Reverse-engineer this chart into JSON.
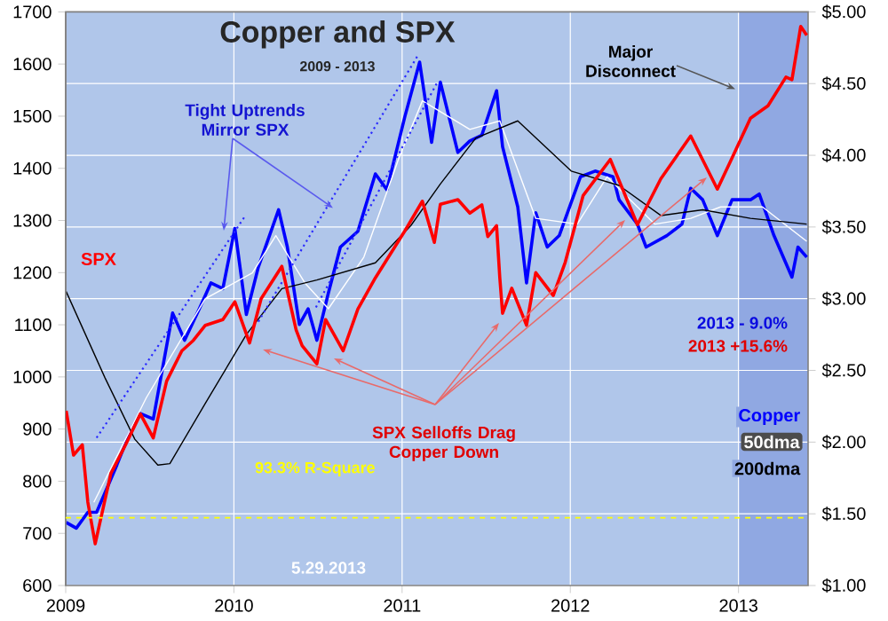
{
  "chart_data": {
    "type": "line",
    "title": "Copper and SPX",
    "subtitle": "2009 - 2013",
    "xlim": [
      "2009-01-01",
      "2013-06-01"
    ],
    "xticks": [
      "2009",
      "2010",
      "2011",
      "2012",
      "2013"
    ],
    "ylim": [
      600,
      1700
    ],
    "yticks": [
      600,
      700,
      800,
      900,
      1000,
      1100,
      1200,
      1300,
      1400,
      1500,
      1600,
      1700
    ],
    "y2lim": [
      1,
      5
    ],
    "y2ticks": [
      {
        "value": 1,
        "label": "$1.00"
      },
      {
        "value": 1.5,
        "label": "$1.50"
      },
      {
        "value": 2,
        "label": "$2.00"
      },
      {
        "value": 2.5,
        "label": "$2.50"
      },
      {
        "value": 3,
        "label": "$3.00"
      },
      {
        "value": 3.5,
        "label": "$3.50"
      },
      {
        "value": 4,
        "label": "$4.00"
      },
      {
        "value": 4.5,
        "label": "$4.50"
      },
      {
        "value": 5,
        "label": "$5.00"
      }
    ],
    "grid": true,
    "series": [
      {
        "name": "SPX",
        "color": "#ff0000",
        "axis": "y",
        "x": [
          "2009-01-02",
          "2009-01-18",
          "2009-02-06",
          "2009-02-18",
          "2009-03-06",
          "2009-04-09",
          "2009-05-11",
          "2009-06-12",
          "2009-07-10",
          "2009-08-08",
          "2009-09-10",
          "2009-10-05",
          "2009-10-31",
          "2009-12-08",
          "2010-01-03",
          "2010-02-04",
          "2010-03-01",
          "2010-04-15",
          "2010-05-16",
          "2010-05-29",
          "2010-06-30",
          "2010-07-19",
          "2010-08-26",
          "2010-09-27",
          "2010-11-04",
          "2011-01-07",
          "2011-02-14",
          "2011-03-12",
          "2011-03-25",
          "2011-05-02",
          "2011-05-28",
          "2011-06-23",
          "2011-07-06",
          "2011-07-25",
          "2011-08-01",
          "2011-08-07",
          "2011-08-27",
          "2011-09-28",
          "2011-10-18",
          "2011-11-25",
          "2011-12-21",
          "2012-01-29",
          "2012-03-28",
          "2012-05-26",
          "2012-07-16",
          "2012-09-19",
          "2012-11-16",
          "2012-12-18",
          "2013-01-27",
          "2013-03-06",
          "2013-04-14",
          "2013-04-27",
          "2013-05-16",
          "2013-05-29"
        ],
        "values": [
          935,
          850,
          870,
          760,
          680,
          815,
          870,
          929,
          883,
          992,
          1050,
          1070,
          1099,
          1110,
          1144,
          1065,
          1150,
          1212,
          1090,
          1060,
          1025,
          1110,
          1050,
          1130,
          1190,
          1280,
          1337,
          1258,
          1331,
          1340,
          1314,
          1330,
          1269,
          1290,
          1190,
          1122,
          1170,
          1099,
          1200,
          1156,
          1220,
          1348,
          1417,
          1292,
          1380,
          1462,
          1360,
          1420,
          1496,
          1520,
          1575,
          1570,
          1672,
          1655
        ]
      },
      {
        "name": "Copper",
        "color": "#0000ff",
        "axis": "y2",
        "x": [
          "2009-01-02",
          "2009-01-24",
          "2009-02-18",
          "2009-03-09",
          "2009-04-22",
          "2009-05-18",
          "2009-06-12",
          "2009-07-10",
          "2009-08-21",
          "2009-09-16",
          "2009-10-18",
          "2009-11-12",
          "2009-12-08",
          "2010-01-03",
          "2010-01-28",
          "2010-02-23",
          "2010-04-08",
          "2010-04-27",
          "2010-05-23",
          "2010-06-11",
          "2010-06-30",
          "2010-07-25",
          "2010-08-20",
          "2010-09-27",
          "2010-11-04",
          "2010-11-29",
          "2011-01-07",
          "2011-02-08",
          "2011-03-06",
          "2011-03-25",
          "2011-05-02",
          "2011-05-28",
          "2011-06-23",
          "2011-07-25",
          "2011-08-07",
          "2011-09-09",
          "2011-09-28",
          "2011-10-18",
          "2011-11-12",
          "2011-12-08",
          "2012-01-23",
          "2012-02-24",
          "2012-04-03",
          "2012-04-16",
          "2012-05-26",
          "2012-06-14",
          "2012-07-29",
          "2012-08-31",
          "2012-09-19",
          "2012-10-15",
          "2012-11-16",
          "2012-12-18",
          "2013-01-27",
          "2013-02-15",
          "2013-03-19",
          "2013-04-27",
          "2013-05-10",
          "2013-05-29"
        ],
        "values": [
          1.44,
          1.4,
          1.51,
          1.51,
          1.84,
          2.05,
          2.2,
          2.16,
          2.9,
          2.71,
          2.93,
          3.11,
          3.07,
          3.49,
          2.89,
          3.22,
          3.62,
          3.36,
          2.82,
          2.93,
          2.71,
          3.04,
          3.36,
          3.47,
          3.87,
          3.76,
          4.27,
          4.65,
          4.09,
          4.51,
          4.02,
          4.1,
          4.14,
          4.45,
          4.06,
          3.64,
          3.11,
          3.6,
          3.36,
          3.44,
          3.85,
          3.89,
          3.85,
          3.69,
          3.52,
          3.36,
          3.44,
          3.52,
          3.77,
          3.69,
          3.44,
          3.69,
          3.69,
          3.73,
          3.44,
          3.15,
          3.36,
          3.29
        ]
      },
      {
        "name": "50dma",
        "color": "#ffffff",
        "axis": "y2",
        "x": [
          "2009-03-03",
          "2009-06-25",
          "2009-10-31",
          "2010-02-10",
          "2010-04-02",
          "2010-06-04",
          "2010-07-25",
          "2010-10-10",
          "2010-12-25",
          "2011-02-14",
          "2011-05-28",
          "2011-08-01",
          "2011-10-18",
          "2012-01-16",
          "2012-03-21",
          "2012-07-03",
          "2012-09-19",
          "2012-11-23",
          "2013-02-22",
          "2013-05-29"
        ],
        "values": [
          1.58,
          2.31,
          3.0,
          3.18,
          3.44,
          3.11,
          2.93,
          3.29,
          3.98,
          4.38,
          4.18,
          4.24,
          3.56,
          3.52,
          3.85,
          3.52,
          3.56,
          3.64,
          3.64,
          3.4
        ]
      },
      {
        "name": "200dma",
        "color": "#000000",
        "axis": "y2",
        "x": [
          "2009-01-02",
          "2009-03-27",
          "2009-05-31",
          "2009-07-20",
          "2009-08-15",
          "2009-10-31",
          "2010-01-28",
          "2010-04-15",
          "2010-06-30",
          "2010-11-04",
          "2011-01-20",
          "2011-03-25",
          "2011-06-10",
          "2011-09-09",
          "2012-01-03",
          "2012-04-16",
          "2012-07-16",
          "2012-10-15",
          "2013-01-27",
          "2013-05-29"
        ],
        "values": [
          3.05,
          2.45,
          2.02,
          1.84,
          1.85,
          2.27,
          2.75,
          3.07,
          3.13,
          3.25,
          3.51,
          3.8,
          4.12,
          4.24,
          3.89,
          3.79,
          3.58,
          3.62,
          3.56,
          3.52
        ]
      },
      {
        "type": "line",
        "color": "#2a2aff",
        "axis": "y2",
        "line_style": "dotted",
        "x": [
          "2009-03-09",
          "2010-01-26"
        ],
        "values": [
          2.03,
          3.58
        ]
      },
      {
        "type": "line",
        "color": "#2a2aff",
        "axis": "y2",
        "line_style": "dotted",
        "x": [
          "2010-02-23",
          "2011-02-03"
        ],
        "values": [
          2.84,
          4.69
        ]
      },
      {
        "type": "line",
        "color": "#2a2aff",
        "axis": "y2",
        "line_style": "dotted",
        "x": [
          "2010-06-28",
          "2011-03-17"
        ],
        "values": [
          2.94,
          4.5
        ]
      }
    ],
    "ref_lines": [
      {
        "axis": "y",
        "value": 730,
        "label": "93.3% R-Square",
        "color": "#ffff00",
        "line_style": "dashed"
      }
    ],
    "bands": [
      {
        "axis": "x",
        "from": "2013",
        "to": "2013-06-01",
        "color": "#90a8e2"
      }
    ],
    "annotations": [
      {
        "text": "Tight Uptrends Mirror SPX",
        "x": "2010-08-04",
        "y": 1324
      },
      "SPX Selloffs Drag Copper Down",
      {
        "text": "Major Disconnect",
        "x": "2012-12-25",
        "y": 1552
      },
      "5.29.2013",
      "2013 - 9.0%",
      "2013 +15.6%"
    ]
  }
}
